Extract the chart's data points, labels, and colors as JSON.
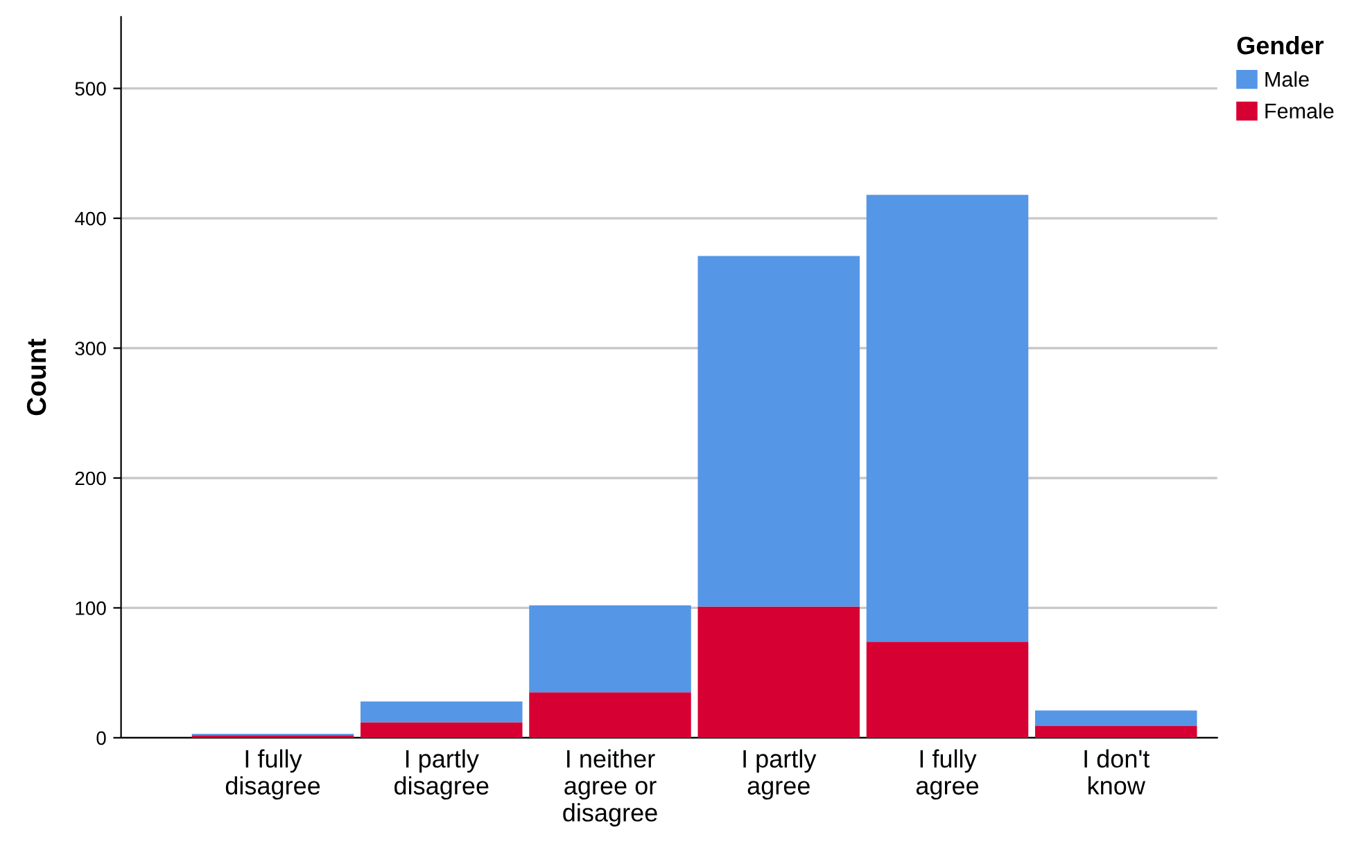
{
  "chart_data": {
    "type": "bar",
    "stacked": true,
    "ylabel": "Count",
    "legend_title": "Gender",
    "legend": "top right",
    "categories": [
      "I fully\ndisagree",
      "I partly\ndisagree",
      "I neither\nagree or\ndisagree",
      "I partly\nagree",
      "I fully\nagree",
      "I don't\nknow"
    ],
    "series": [
      {
        "name": "Female",
        "color": "#d70033",
        "values": [
          2,
          12,
          35,
          101,
          74,
          9
        ]
      },
      {
        "name": "Male",
        "color": "#5596e6",
        "values": [
          1,
          16,
          67,
          270,
          344,
          12
        ]
      }
    ],
    "ylim": [
      0,
      555
    ],
    "yticks": [
      0,
      100,
      200,
      300,
      400,
      500
    ],
    "grid": "y"
  }
}
